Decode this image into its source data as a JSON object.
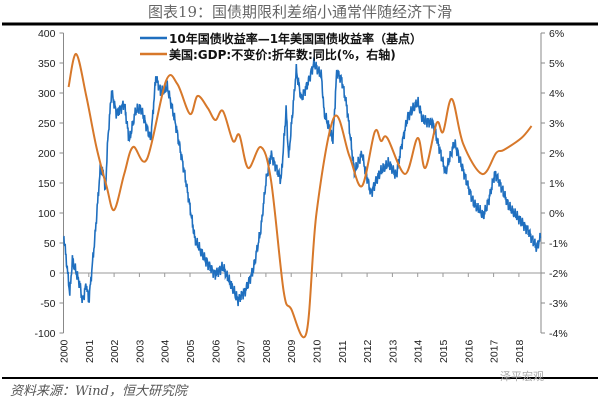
{
  "title": "图表19：国债期限利差缩小通常伴随经济下滑",
  "source": "资料来源：Wind，恒大研究院",
  "watermark": "泽平宏观",
  "chart_data": {
    "type": "line",
    "title": "图表19：国债期限利差缩小通常伴随经济下滑",
    "xlabel": "",
    "ylabel": "",
    "x_ticks": [
      "2000",
      "2001",
      "2002",
      "2003",
      "2004",
      "2005",
      "2006",
      "2007",
      "2008",
      "2009",
      "2010",
      "2011",
      "2012",
      "2013",
      "2014",
      "2015",
      "2016",
      "2017",
      "2018"
    ],
    "y_left": {
      "range": [
        -100,
        400
      ],
      "ticks": [
        "400",
        "350",
        "300",
        "250",
        "200",
        "150",
        "100",
        "50",
        "0",
        "-50",
        "-100"
      ]
    },
    "y_right": {
      "range": [
        -4,
        6
      ],
      "ticks": [
        "6%",
        "5%",
        "4%",
        "3%",
        "2%",
        "1%",
        "0%",
        "-1%",
        "-2%",
        "-3%",
        "-4%"
      ]
    },
    "legend_position": "top",
    "grid": false,
    "series": [
      {
        "name": "10年国债收益率—1年美国国债收益率（基点）",
        "axis": "left",
        "color": "#1f6fbf",
        "x": [
          2000.0,
          2000.25,
          2000.35,
          2000.65,
          2000.75,
          2000.9,
          2001.0,
          2001.25,
          2001.45,
          2001.6,
          2001.65,
          2001.75,
          2001.9,
          2002.1,
          2002.4,
          2002.6,
          2002.85,
          2003.05,
          2003.45,
          2003.65,
          2003.85,
          2004.1,
          2004.4,
          2004.8,
          2005.2,
          2005.6,
          2006.0,
          2006.3,
          2006.6,
          2006.9,
          2007.2,
          2007.5,
          2007.8,
          2008.0,
          2008.2,
          2008.6,
          2008.8,
          2008.9,
          2009.2,
          2009.4,
          2009.7,
          2009.9,
          2010.2,
          2010.3,
          2010.65,
          2010.8,
          2011.0,
          2011.2,
          2011.5,
          2011.8,
          2011.9,
          2012.15,
          2012.5,
          2012.85,
          2013.15,
          2013.35,
          2013.6,
          2014.0,
          2014.2,
          2014.6,
          2015.1,
          2015.45,
          2015.75,
          2016.2,
          2016.6,
          2016.8,
          2017.05,
          2017.25,
          2017.6,
          2018.05,
          2018.35,
          2018.7,
          2018.85
        ],
        "values": [
          67,
          -35,
          22,
          -20,
          -48,
          -18,
          -48,
          63,
          172,
          165,
          130,
          222,
          302,
          265,
          283,
          220,
          270,
          275,
          223,
          327,
          300,
          310,
          255,
          163,
          55,
          22,
          -2,
          10,
          -18,
          -45,
          -28,
          5,
          72,
          152,
          198,
          155,
          272,
          193,
          338,
          290,
          322,
          350,
          327,
          267,
          222,
          335,
          322,
          277,
          167,
          200,
          177,
          133,
          167,
          183,
          162,
          210,
          260,
          285,
          255,
          250,
          167,
          217,
          178,
          117,
          95,
          120,
          167,
          150,
          110,
          88,
          72,
          42,
          58
        ]
      },
      {
        "name": "美国:GDP:不变价:折年数:同比(%，右轴)",
        "axis": "right",
        "color": "#d7782a",
        "x": [
          2000.2,
          2000.5,
          2000.9,
          2001.3,
          2001.7,
          2002.0,
          2002.4,
          2002.75,
          2003.3,
          2004.05,
          2004.5,
          2005.0,
          2005.3,
          2005.7,
          2006.0,
          2006.3,
          2006.7,
          2006.95,
          2007.3,
          2007.8,
          2008.2,
          2008.7,
          2009.0,
          2009.6,
          2010.0,
          2010.7,
          2011.3,
          2011.8,
          2012.3,
          2012.55,
          2012.8,
          2013.5,
          2014.0,
          2014.3,
          2014.75,
          2015.0,
          2015.35,
          2015.8,
          2016.55,
          2017.1,
          2017.4,
          2018.1,
          2018.5
        ],
        "values": [
          4.2,
          5.3,
          3.9,
          2.2,
          0.9,
          0.1,
          1.3,
          2.2,
          1.8,
          4.4,
          4.3,
          3.3,
          3.9,
          3.5,
          3.1,
          3.4,
          2.4,
          2.6,
          1.5,
          2.2,
          1.1,
          -2.6,
          -3.2,
          -4.0,
          0.0,
          3.2,
          1.9,
          0.9,
          2.7,
          2.4,
          2.5,
          1.3,
          2.5,
          1.5,
          3.0,
          2.7,
          3.8,
          2.3,
          1.3,
          2.0,
          2.1,
          2.5,
          2.9
        ]
      }
    ]
  }
}
